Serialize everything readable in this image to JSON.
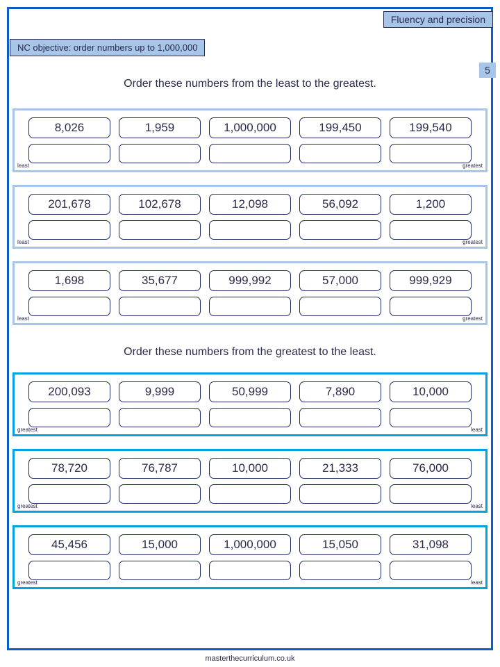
{
  "header": {
    "tag": "Fluency and precision",
    "objective": "NC objective: order numbers up to 1,000,000",
    "page_number": "5"
  },
  "sections": [
    {
      "instruction": "Order these numbers from the least to the greatest.",
      "palette": "pale",
      "left_label": "least",
      "right_label": "greatest",
      "panels": [
        [
          "8,026",
          "1,959",
          "1,000,000",
          "199,450",
          "199,540"
        ],
        [
          "201,678",
          "102,678",
          "12,098",
          "56,092",
          "1,200"
        ],
        [
          "1,698",
          "35,677",
          "999,992",
          "57,000",
          "999,929"
        ]
      ]
    },
    {
      "instruction": "Order these numbers from the greatest to the least.",
      "palette": "bright",
      "left_label": "greatest",
      "right_label": "least",
      "panels": [
        [
          "200,093",
          "9,999",
          "50,999",
          "7,890",
          "10,000"
        ],
        [
          "78,720",
          "76,787",
          "10,000",
          "21,333",
          "76,000"
        ],
        [
          "45,456",
          "15,000",
          "1,000,000",
          "15,050",
          "31,098"
        ]
      ]
    }
  ],
  "footer": "masterthecurriculum.co.uk",
  "colors": {
    "page_border": "#0a5dc2",
    "tag_bg": "#a7c5e8",
    "cell_border": "#1a2b5f",
    "pale_border": "#a7c5e8",
    "bright_border": "#00a2e0"
  }
}
